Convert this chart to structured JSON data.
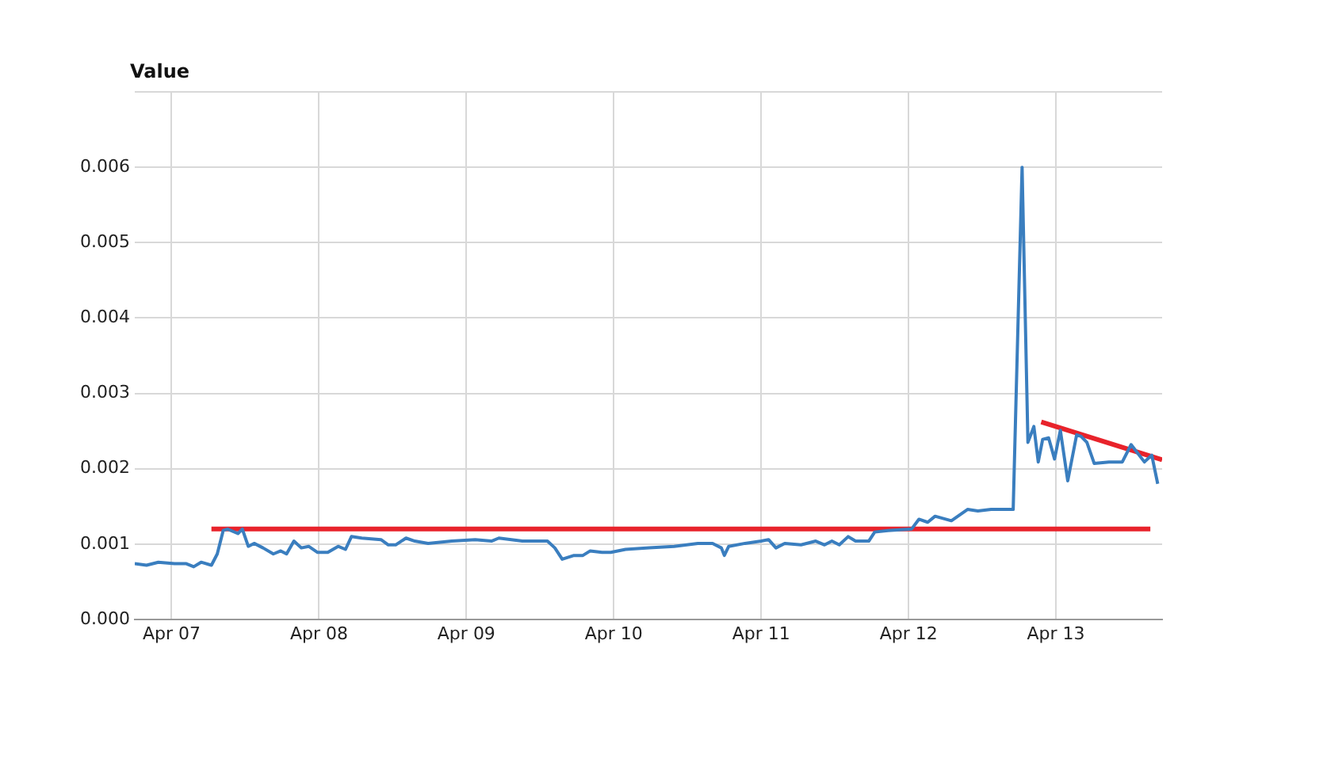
{
  "chart_data": {
    "type": "line",
    "ylabel": "Value",
    "xlim": [
      "--04-06T18:00",
      "--04-13T17:17"
    ],
    "xticks": [
      {
        "value": "--04-07",
        "label": "Apr 07"
      },
      {
        "value": "--04-08",
        "label": "Apr 08"
      },
      {
        "value": "--04-09",
        "label": "Apr 09"
      },
      {
        "value": "--04-10",
        "label": "Apr 10"
      },
      {
        "value": "--04-11",
        "label": "Apr 11"
      },
      {
        "value": "--04-12",
        "label": "Apr 12"
      },
      {
        "value": "--04-13",
        "label": "Apr 13"
      }
    ],
    "ylim": [
      0,
      0.007
    ],
    "yticks": [
      {
        "value": 0,
        "label": "0.000"
      },
      0.001,
      0.002,
      0.003,
      0.004,
      0.005,
      0.006,
      {
        "value": 0.007,
        "label": null
      }
    ],
    "grid": true,
    "legend": false,
    "marker": "none",
    "series": [
      {
        "color": "#3a7ebf",
        "x": [
          "--04-06T18:00",
          "--04-06T19:55",
          "--04-06T21:50",
          "--04-07T00:29",
          "--04-07T02:24",
          "--04-07T03:36",
          "--04-07T04:48",
          "--04-07T06:29",
          "--04-07T07:26",
          "--04-07T08:24",
          "--04-07T09:07",
          "--04-07T10:48",
          "--04-07T11:31",
          "--04-07T12:29",
          "--04-07T13:26",
          "--04-07T14:53",
          "--04-07T16:34",
          "--04-07T17:46",
          "--04-07T18:43",
          "--04-07T19:55",
          "--04-07T21:07",
          "--04-07T22:19",
          "--04-07T23:46",
          "--04-08T01:26",
          "--04-08T03:07",
          "--04-08T04:19",
          "--04-08T05:17",
          "--04-08T06:58",
          "--04-08T10:05",
          "--04-08T11:17",
          "--04-08T12:29",
          "--04-08T14:10",
          "--04-08T15:36",
          "--04-08T17:46",
          "--04-08T21:36",
          "--04-09T01:26",
          "--04-09T04:05",
          "--04-09T05:17",
          "--04-09T09:07",
          "--04-09T13:12",
          "--04-09T14:24",
          "--04-09T15:36",
          "--04-09T17:31",
          "--04-09T18:58",
          "--04-09T20:10",
          "--04-09T22:05",
          "--04-09T23:31",
          "--04-10T01:55",
          "--04-10T05:46",
          "--04-10T09:50",
          "--04-10T13:41",
          "--04-10T16:05",
          "--04-10T17:31",
          "--04-10T18:00",
          "--04-10T18:43",
          "--04-10T21:22",
          "--04-11T00:00",
          "--04-11T01:12",
          "--04-11T02:24",
          "--04-11T03:50",
          "--04-11T06:29",
          "--04-11T08:53",
          "--04-11T10:19",
          "--04-11T11:31",
          "--04-11T12:43",
          "--04-11T14:10",
          "--04-11T15:22",
          "--04-11T17:31",
          "--04-11T18:29",
          "--04-11T20:38",
          "--04-12T00:29",
          "--04-12T01:41",
          "--04-12T03:07",
          "--04-12T04:19",
          "--04-12T06:58",
          "--04-12T09:36",
          "--04-12T11:17",
          "--04-12T13:26",
          "--04-12T14:38",
          "--04-12T17:02",
          "--04-12T17:31",
          "--04-12T18:29",
          "--04-12T19:26",
          "--04-12T20:24",
          "--04-12T21:07",
          "--04-12T21:50",
          "--04-12T22:48",
          "--04-12T23:46",
          "--04-13T00:43",
          "--04-13T01:55",
          "--04-13T03:22",
          "--04-13T04:05",
          "--04-13T05:02",
          "--04-13T06:14",
          "--04-13T08:38",
          "--04-13T10:48",
          "--04-13T12:14",
          "--04-13T14:24",
          "--04-13T15:36",
          "--04-13T16:34"
        ],
        "values": [
          0.00074,
          0.00072,
          0.00076,
          0.00074,
          0.00074,
          0.0007,
          0.00076,
          0.00072,
          0.00087,
          0.00118,
          0.0012,
          0.00114,
          0.0012,
          0.00097,
          0.00101,
          0.00095,
          0.00087,
          0.00091,
          0.00087,
          0.00104,
          0.00095,
          0.00097,
          0.00089,
          0.00089,
          0.00097,
          0.00093,
          0.0011,
          0.00108,
          0.00106,
          0.00099,
          0.00099,
          0.00108,
          0.00104,
          0.00101,
          0.00104,
          0.00106,
          0.00104,
          0.00108,
          0.00104,
          0.00104,
          0.00095,
          0.0008,
          0.00085,
          0.00085,
          0.00091,
          0.00089,
          0.00089,
          0.00093,
          0.00095,
          0.00097,
          0.00101,
          0.00101,
          0.00095,
          0.00085,
          0.00097,
          0.00101,
          0.00104,
          0.00106,
          0.00095,
          0.00101,
          0.00099,
          0.00104,
          0.00099,
          0.00104,
          0.00099,
          0.0011,
          0.00104,
          0.00104,
          0.00116,
          0.00118,
          0.0012,
          0.00133,
          0.00129,
          0.00137,
          0.00131,
          0.00146,
          0.00144,
          0.00146,
          0.00146,
          0.00146,
          0.00298,
          0.006,
          0.00235,
          0.00256,
          0.00209,
          0.00239,
          0.00241,
          0.00213,
          0.00251,
          0.00184,
          0.00245,
          0.00243,
          0.00235,
          0.00207,
          0.00209,
          0.00209,
          0.00232,
          0.00209,
          0.00218,
          0.0018
        ]
      },
      {
        "color": "#e8232b",
        "x": [
          "--04-07T06:29",
          "--04-13T15:22"
        ],
        "values": [
          0.0012,
          0.0012
        ]
      },
      {
        "color": "#e8232b",
        "x": [
          "--04-12T21:36",
          "--04-13T17:17"
        ],
        "values": [
          0.00262,
          0.00212
        ]
      }
    ]
  }
}
